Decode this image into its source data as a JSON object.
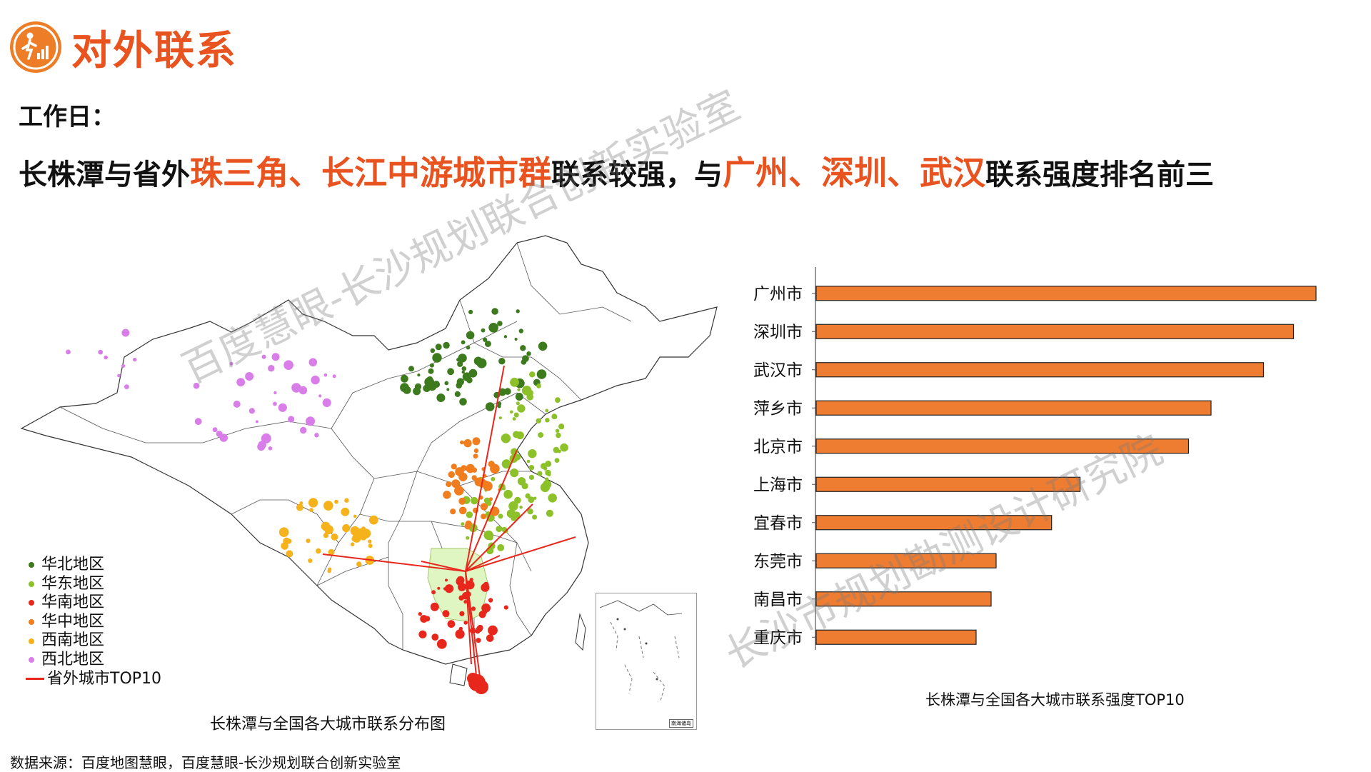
{
  "header": {
    "title": "对外联系",
    "logo_icon": "person-chart-icon"
  },
  "subtitle": {
    "label": "工作日："
  },
  "headline": {
    "part1": "长株潭与省外",
    "hl1": "珠三角、长江中游城市群",
    "part2": "联系较强，与",
    "hl2": "广州、深圳、武汉",
    "part3": "联系强度排名前三"
  },
  "map": {
    "caption": "长株潭与全国各大城市联系分布图",
    "inset_label": "南海诸岛",
    "legend": [
      {
        "label": "华北地区",
        "color": "#3d7a1e"
      },
      {
        "label": "华东地区",
        "color": "#8dc12a"
      },
      {
        "label": "华南地区",
        "color": "#e8271c"
      },
      {
        "label": "华中地区",
        "color": "#f07d1e"
      },
      {
        "label": "西南地区",
        "color": "#f5b21b"
      },
      {
        "label": "西北地区",
        "color": "#d97ee8"
      },
      {
        "label": "省外城市TOP10",
        "color": "#e8271c"
      }
    ]
  },
  "chart_data": {
    "type": "bar",
    "orientation": "horizontal",
    "title": "长株潭与全国各大城市联系强度TOP10",
    "categories": [
      "广州市",
      "深圳市",
      "武汉市",
      "萍乡市",
      "北京市",
      "上海市",
      "宜春市",
      "东莞市",
      "南昌市",
      "重庆市"
    ],
    "values": [
      100,
      95.5,
      89.5,
      79,
      74.5,
      52.8,
      47.1,
      36,
      35,
      32
    ],
    "bar_color": "#ee7d32",
    "bar_edge": "#222222",
    "xlim": [
      0,
      100
    ]
  },
  "source": {
    "text": "数据来源：百度地图慧眼，百度慧眼-长沙规划联合创新实验室"
  },
  "watermarks": [
    "百度慧眼-长沙规划联合创新实验室",
    "长沙市规划勘测设计研究院"
  ]
}
